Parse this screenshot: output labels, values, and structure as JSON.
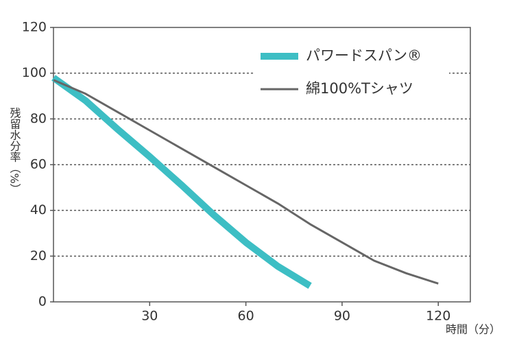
{
  "chart_data": {
    "type": "line",
    "y_label": "残留水分率（%）",
    "x_label": "時間（分）",
    "xlim": [
      0,
      130
    ],
    "xticks": [
      30,
      60,
      90,
      120
    ],
    "ylim": [
      0,
      120
    ],
    "yticks": [
      0,
      20,
      40,
      60,
      80,
      100,
      120
    ],
    "grid": true,
    "legend": "upper right",
    "series": [
      {
        "name": "パワードスパン®",
        "color": "#3dbec4",
        "width": 10,
        "x": [
          0,
          10,
          20,
          30,
          40,
          50,
          60,
          70,
          80
        ],
        "values": [
          98,
          88,
          75.5,
          63.5,
          51,
          38,
          26,
          15.5,
          7
        ]
      },
      {
        "name": "綿100%Tシャツ",
        "color": "#666666",
        "width": 3,
        "x": [
          0,
          10,
          20,
          30,
          40,
          50,
          60,
          70,
          80,
          90,
          100,
          110,
          120
        ],
        "values": [
          97,
          91,
          83,
          75,
          67,
          59,
          51,
          43,
          34,
          26,
          18,
          12.5,
          8
        ]
      }
    ]
  }
}
